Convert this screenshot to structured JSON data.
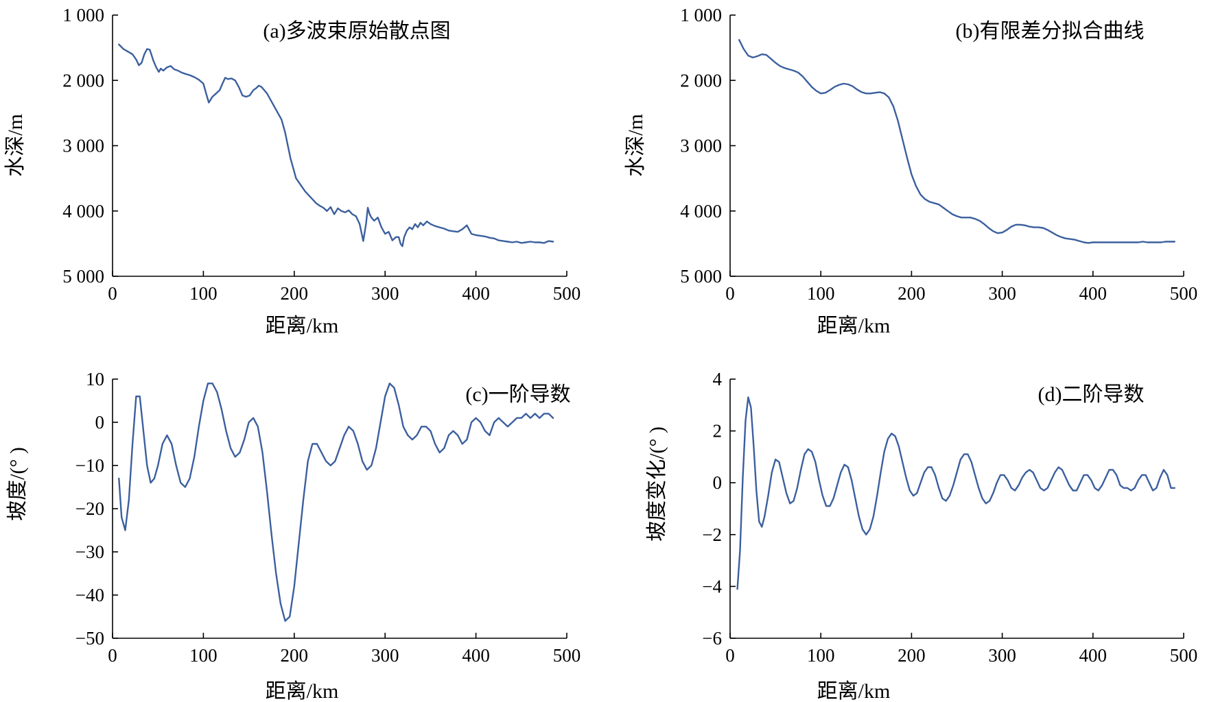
{
  "colors": {
    "series": "#3b5f9e",
    "axis": "#000000"
  },
  "chart_data": [
    {
      "panel": "a",
      "type": "line",
      "title": "(a)多波束原始散点图",
      "xlabel": "距离/km",
      "ylabel": "水深/m",
      "xlim": [
        0,
        500
      ],
      "ylim": [
        1000,
        5000
      ],
      "y_inverted": true,
      "xticks": [
        0,
        100,
        200,
        300,
        400,
        500
      ],
      "xtick_labels": [
        "0",
        "100",
        "200",
        "300",
        "400",
        "500"
      ],
      "yticks": [
        1000,
        2000,
        3000,
        4000,
        5000
      ],
      "ytick_labels": [
        "1 000",
        "2 000",
        "3 000",
        "4 000",
        "5 000"
      ],
      "grid": false,
      "series": [
        {
          "x": [
            7,
            12,
            17,
            22,
            26,
            29,
            32,
            35,
            38,
            41,
            45,
            48,
            51,
            53,
            56,
            60,
            64,
            68,
            72,
            76,
            80,
            85,
            90,
            95,
            100,
            103,
            106,
            110,
            114,
            118,
            121,
            124,
            127,
            131,
            135,
            139,
            143,
            147,
            151,
            155,
            158,
            161,
            164,
            167,
            170,
            174,
            178,
            182,
            186,
            190,
            193,
            196,
            199,
            202,
            205,
            208,
            212,
            216,
            220,
            224,
            228,
            232,
            236,
            240,
            244,
            248,
            252,
            256,
            260,
            264,
            268,
            272,
            276,
            279,
            281,
            283,
            285,
            288,
            292,
            296,
            300,
            304,
            308,
            312,
            315,
            317,
            319,
            321,
            324,
            327,
            330,
            333,
            336,
            339,
            342,
            346,
            350,
            355,
            360,
            365,
            370,
            375,
            380,
            385,
            390,
            395,
            400,
            405,
            410,
            415,
            420,
            425,
            430,
            435,
            440,
            445,
            450,
            455,
            460,
            465,
            470,
            475,
            480,
            485
          ],
          "y": [
            1450,
            1520,
            1560,
            1600,
            1680,
            1770,
            1730,
            1600,
            1520,
            1530,
            1700,
            1800,
            1870,
            1820,
            1850,
            1800,
            1780,
            1830,
            1850,
            1880,
            1900,
            1920,
            1950,
            1990,
            2050,
            2200,
            2340,
            2250,
            2200,
            2150,
            2050,
            1960,
            1980,
            1970,
            2000,
            2100,
            2230,
            2250,
            2230,
            2150,
            2120,
            2080,
            2100,
            2150,
            2200,
            2300,
            2400,
            2500,
            2600,
            2800,
            3000,
            3200,
            3350,
            3500,
            3560,
            3620,
            3700,
            3760,
            3820,
            3880,
            3920,
            3950,
            4000,
            3940,
            4050,
            3960,
            4000,
            4020,
            3990,
            4050,
            4080,
            4200,
            4460,
            4200,
            3950,
            4050,
            4100,
            4150,
            4100,
            4250,
            4350,
            4320,
            4450,
            4400,
            4400,
            4500,
            4540,
            4400,
            4300,
            4250,
            4280,
            4200,
            4250,
            4180,
            4220,
            4160,
            4200,
            4230,
            4250,
            4270,
            4300,
            4310,
            4320,
            4280,
            4220,
            4350,
            4370,
            4380,
            4390,
            4410,
            4420,
            4450,
            4460,
            4470,
            4480,
            4470,
            4490,
            4480,
            4470,
            4480,
            4480,
            4490,
            4460,
            4470
          ]
        }
      ]
    },
    {
      "panel": "b",
      "type": "line",
      "title": "(b)有限差分拟合曲线",
      "xlabel": "距离/km",
      "ylabel": "水深/m",
      "xlim": [
        0,
        500
      ],
      "ylim": [
        1000,
        5000
      ],
      "y_inverted": true,
      "xticks": [
        0,
        100,
        200,
        300,
        400,
        500
      ],
      "xtick_labels": [
        "0",
        "100",
        "200",
        "300",
        "400",
        "500"
      ],
      "yticks": [
        1000,
        2000,
        3000,
        4000,
        5000
      ],
      "ytick_labels": [
        "1 000",
        "2 000",
        "3 000",
        "4 000",
        "5 000"
      ],
      "grid": false,
      "series": [
        {
          "x": [
            10,
            15,
            20,
            25,
            30,
            35,
            40,
            45,
            50,
            55,
            60,
            65,
            70,
            75,
            80,
            85,
            90,
            95,
            100,
            105,
            110,
            115,
            120,
            125,
            130,
            135,
            140,
            145,
            150,
            155,
            160,
            165,
            170,
            175,
            180,
            185,
            190,
            195,
            200,
            205,
            210,
            215,
            220,
            225,
            230,
            235,
            240,
            245,
            250,
            255,
            260,
            265,
            270,
            275,
            280,
            285,
            290,
            295,
            300,
            305,
            310,
            315,
            320,
            325,
            330,
            335,
            340,
            345,
            350,
            355,
            360,
            365,
            370,
            375,
            380,
            385,
            390,
            395,
            400,
            405,
            410,
            415,
            420,
            425,
            430,
            435,
            440,
            445,
            450,
            455,
            460,
            465,
            470,
            475,
            480,
            485,
            490
          ],
          "y": [
            1380,
            1520,
            1620,
            1650,
            1630,
            1600,
            1610,
            1670,
            1730,
            1780,
            1810,
            1830,
            1850,
            1880,
            1940,
            2020,
            2100,
            2160,
            2200,
            2190,
            2150,
            2100,
            2070,
            2050,
            2060,
            2090,
            2140,
            2180,
            2200,
            2200,
            2190,
            2180,
            2200,
            2260,
            2400,
            2620,
            2900,
            3180,
            3440,
            3620,
            3750,
            3820,
            3860,
            3880,
            3900,
            3950,
            4000,
            4050,
            4080,
            4100,
            4100,
            4100,
            4120,
            4150,
            4200,
            4260,
            4310,
            4340,
            4330,
            4290,
            4240,
            4210,
            4210,
            4220,
            4240,
            4250,
            4250,
            4260,
            4290,
            4330,
            4370,
            4400,
            4420,
            4430,
            4440,
            4460,
            4480,
            4490,
            4480,
            4480,
            4480,
            4480,
            4480,
            4480,
            4480,
            4480,
            4480,
            4480,
            4480,
            4470,
            4480,
            4480,
            4480,
            4480,
            4470,
            4470,
            4470
          ]
        }
      ]
    },
    {
      "panel": "c",
      "type": "line",
      "title": "(c)一阶导数",
      "xlabel": "距离/km",
      "ylabel": "坡度/(° )",
      "xlim": [
        0,
        500
      ],
      "ylim": [
        -50,
        10
      ],
      "y_inverted": false,
      "xticks": [
        0,
        100,
        200,
        300,
        400,
        500
      ],
      "xtick_labels": [
        "0",
        "100",
        "200",
        "300",
        "400",
        "500"
      ],
      "yticks": [
        10,
        0,
        -10,
        -20,
        -30,
        -40,
        -50
      ],
      "ytick_labels": [
        "10",
        "0",
        "−10",
        "−20",
        "−30",
        "−40",
        "−50"
      ],
      "grid": false,
      "series": [
        {
          "x": [
            7,
            10,
            14,
            18,
            22,
            26,
            30,
            34,
            38,
            42,
            46,
            50,
            55,
            60,
            65,
            70,
            75,
            80,
            85,
            90,
            95,
            100,
            105,
            110,
            115,
            120,
            125,
            130,
            135,
            140,
            145,
            150,
            155,
            160,
            165,
            170,
            175,
            180,
            185,
            190,
            195,
            200,
            205,
            210,
            215,
            220,
            225,
            230,
            235,
            240,
            245,
            250,
            255,
            260,
            265,
            270,
            275,
            280,
            285,
            290,
            295,
            300,
            305,
            310,
            315,
            320,
            325,
            330,
            335,
            340,
            345,
            350,
            355,
            360,
            365,
            370,
            375,
            380,
            385,
            390,
            395,
            400,
            405,
            410,
            415,
            420,
            425,
            430,
            435,
            440,
            445,
            450,
            455,
            460,
            465,
            470,
            475,
            480,
            485
          ],
          "y": [
            -13,
            -22,
            -25,
            -18,
            -5,
            6,
            6,
            -2,
            -10,
            -14,
            -13,
            -10,
            -5,
            -3,
            -5,
            -10,
            -14,
            -15,
            -13,
            -8,
            -1,
            5,
            9,
            9,
            7,
            3,
            -2,
            -6,
            -8,
            -7,
            -4,
            0,
            1,
            -1,
            -7,
            -16,
            -26,
            -35,
            -42,
            -46,
            -45,
            -38,
            -28,
            -18,
            -9,
            -5,
            -5,
            -7,
            -9,
            -10,
            -9,
            -6,
            -3,
            -1,
            -2,
            -5,
            -9,
            -11,
            -10,
            -6,
            0,
            6,
            9,
            8,
            4,
            -1,
            -3,
            -4,
            -3,
            -1,
            -1,
            -2,
            -5,
            -7,
            -6,
            -3,
            -2,
            -3,
            -5,
            -4,
            0,
            1,
            0,
            -2,
            -3,
            0,
            1,
            0,
            -1,
            0,
            1,
            1,
            2,
            1,
            2,
            1,
            2,
            2,
            1
          ]
        }
      ]
    },
    {
      "panel": "d",
      "type": "line",
      "title": "(d)二阶导数",
      "xlabel": "距离/km",
      "ylabel": "坡度变化/(° )",
      "xlim": [
        0,
        500
      ],
      "ylim": [
        -6,
        4
      ],
      "y_inverted": false,
      "xticks": [
        0,
        100,
        200,
        300,
        400,
        500
      ],
      "xtick_labels": [
        "0",
        "100",
        "200",
        "300",
        "400",
        "500"
      ],
      "yticks": [
        4,
        2,
        0,
        -2,
        -4,
        -6
      ],
      "ytick_labels": [
        "4",
        "2",
        "0",
        "−2",
        "−4",
        "−6"
      ],
      "grid": false,
      "series": [
        {
          "x": [
            8,
            11,
            14,
            17,
            20,
            23,
            26,
            29,
            32,
            35,
            38,
            42,
            46,
            50,
            54,
            58,
            62,
            66,
            70,
            74,
            78,
            82,
            86,
            90,
            94,
            98,
            102,
            106,
            110,
            114,
            118,
            122,
            126,
            130,
            134,
            138,
            142,
            146,
            150,
            154,
            158,
            162,
            166,
            170,
            174,
            178,
            182,
            186,
            190,
            194,
            198,
            202,
            206,
            210,
            214,
            218,
            222,
            226,
            230,
            234,
            238,
            242,
            246,
            250,
            254,
            258,
            262,
            266,
            270,
            274,
            278,
            282,
            286,
            290,
            294,
            298,
            302,
            306,
            310,
            314,
            318,
            322,
            326,
            330,
            334,
            338,
            342,
            346,
            350,
            354,
            358,
            362,
            366,
            370,
            374,
            378,
            382,
            386,
            390,
            394,
            398,
            402,
            406,
            410,
            414,
            418,
            422,
            426,
            430,
            434,
            438,
            442,
            446,
            450,
            454,
            458,
            462,
            466,
            470,
            474,
            478,
            482,
            486,
            490
          ],
          "y": [
            -4.1,
            -2.6,
            0.2,
            2.4,
            3.3,
            2.9,
            1.4,
            -0.3,
            -1.5,
            -1.7,
            -1.3,
            -0.5,
            0.4,
            0.9,
            0.8,
            0.2,
            -0.4,
            -0.8,
            -0.7,
            -0.2,
            0.5,
            1.1,
            1.3,
            1.2,
            0.8,
            0.1,
            -0.5,
            -0.9,
            -0.9,
            -0.6,
            -0.1,
            0.4,
            0.7,
            0.6,
            0.1,
            -0.6,
            -1.3,
            -1.8,
            -2.0,
            -1.8,
            -1.3,
            -0.5,
            0.4,
            1.2,
            1.7,
            1.9,
            1.8,
            1.4,
            0.8,
            0.2,
            -0.3,
            -0.5,
            -0.4,
            0.0,
            0.4,
            0.6,
            0.6,
            0.3,
            -0.2,
            -0.6,
            -0.7,
            -0.5,
            -0.1,
            0.4,
            0.9,
            1.1,
            1.1,
            0.8,
            0.3,
            -0.2,
            -0.6,
            -0.8,
            -0.7,
            -0.4,
            0.0,
            0.3,
            0.3,
            0.1,
            -0.2,
            -0.3,
            -0.1,
            0.2,
            0.4,
            0.5,
            0.4,
            0.1,
            -0.2,
            -0.3,
            -0.2,
            0.1,
            0.4,
            0.6,
            0.5,
            0.2,
            -0.1,
            -0.3,
            -0.3,
            0.0,
            0.3,
            0.3,
            0.1,
            -0.2,
            -0.3,
            -0.1,
            0.2,
            0.5,
            0.5,
            0.3,
            -0.1,
            -0.2,
            -0.2,
            -0.3,
            -0.2,
            0.1,
            0.3,
            0.3,
            0.0,
            -0.3,
            -0.2,
            0.2,
            0.5,
            0.3,
            -0.2,
            -0.2
          ]
        }
      ]
    }
  ]
}
